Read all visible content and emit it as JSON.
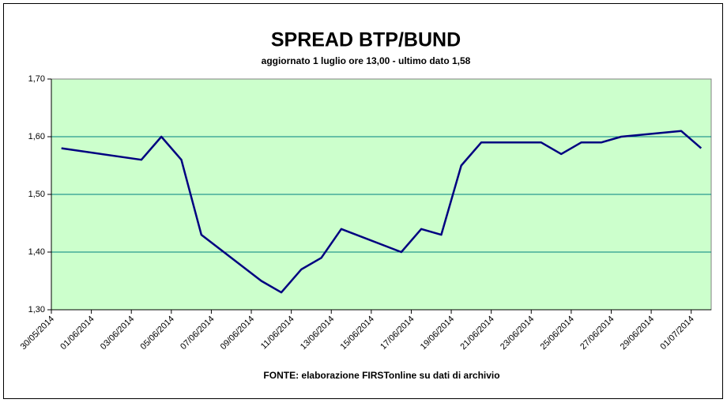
{
  "chart_data": {
    "type": "line",
    "title": "SPREAD BTP/BUND",
    "subtitle": "aggiornato 1 luglio ore 13,00 - ultimo dato 1,58",
    "source": "FONTE: elaborazione FIRSTonline su dati di archivio",
    "x": [
      "30/05/2014",
      "03/06/2014",
      "04/06/2014",
      "05/06/2014",
      "06/06/2014",
      "09/06/2014",
      "10/06/2014",
      "11/06/2014",
      "12/06/2014",
      "13/06/2014",
      "16/06/2014",
      "17/06/2014",
      "18/06/2014",
      "19/06/2014",
      "20/06/2014",
      "23/06/2014",
      "24/06/2014",
      "25/06/2014",
      "26/06/2014",
      "27/06/2014",
      "30/06/2014",
      "01/07/2014"
    ],
    "series": [
      {
        "color": "#000080",
        "values": [
          1.58,
          1.56,
          1.6,
          1.56,
          1.43,
          1.35,
          1.33,
          1.37,
          1.39,
          1.44,
          1.4,
          1.44,
          1.43,
          1.55,
          1.59,
          1.59,
          1.57,
          1.59,
          1.59,
          1.6,
          1.61,
          1.58
        ]
      }
    ],
    "xticks": [
      "30/05/2014",
      "01/06/2014",
      "03/06/2014",
      "05/06/2014",
      "07/06/2014",
      "09/06/2014",
      "11/06/2014",
      "13/06/2014",
      "15/06/2014",
      "17/06/2014",
      "19/06/2014",
      "21/06/2014",
      "23/06/2014",
      "25/06/2014",
      "27/06/2014",
      "29/06/2014",
      "01/07/2014"
    ],
    "ylim": [
      1.3,
      1.7
    ],
    "yticks": [
      {
        "value": 1.3,
        "label": "1,30"
      },
      {
        "value": 1.4,
        "label": "1,40"
      },
      {
        "value": 1.5,
        "label": "1,50"
      },
      {
        "value": 1.6,
        "label": "1,60"
      },
      {
        "value": 1.7,
        "label": "1,70"
      }
    ],
    "grid": true,
    "plot_background": "#ccffcc",
    "grid_color": "#008080"
  }
}
